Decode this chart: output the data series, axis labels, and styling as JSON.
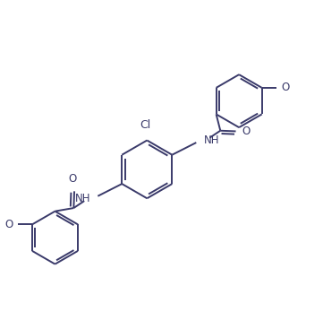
{
  "line_color": "#3a3a6a",
  "bg_color": "#ffffff",
  "line_width": 1.4,
  "font_size": 8.5,
  "figsize": [
    3.61,
    3.67
  ],
  "dpi": 100,
  "xlim": [
    0,
    10
  ],
  "ylim": [
    0,
    10
  ]
}
